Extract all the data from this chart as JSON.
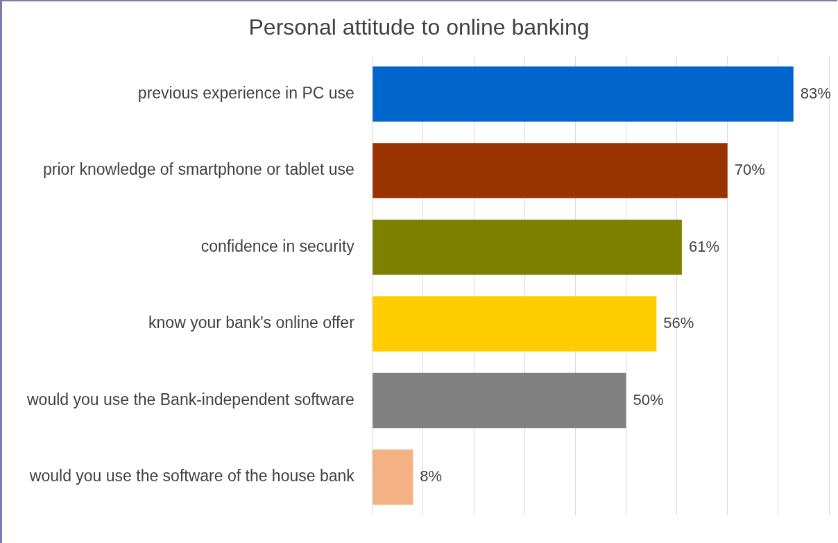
{
  "chart_data": {
    "type": "bar",
    "orientation": "horizontal",
    "title": "Personal attitude to online banking",
    "categories": [
      "previous experience in PC use",
      "prior knowledge of smartphone or tablet use",
      "confidence in security",
      "know your bank's online offer",
      "would you use the Bank-independent software",
      "would you use the software of the house bank"
    ],
    "values": [
      83,
      70,
      61,
      56,
      50,
      8
    ],
    "colors": [
      "#0066cc",
      "#993300",
      "#808000",
      "#ffcc00",
      "#808080",
      "#f4b183"
    ],
    "value_labels": [
      "83%",
      "70%",
      "61%",
      "56%",
      "50%",
      "8%"
    ],
    "xlim": [
      0,
      90
    ],
    "xticks": [
      {
        "value": 0,
        "label": null
      },
      {
        "value": 10,
        "label": null
      },
      {
        "value": 20,
        "label": null
      },
      {
        "value": 30,
        "label": null
      },
      {
        "value": 40,
        "label": null
      },
      {
        "value": 50,
        "label": null
      },
      {
        "value": 60,
        "label": null
      },
      {
        "value": 70,
        "label": null
      },
      {
        "value": 80,
        "label": null
      },
      {
        "value": 90,
        "label": null
      }
    ],
    "tick_labels": "y",
    "grid": "x",
    "legend": false
  }
}
